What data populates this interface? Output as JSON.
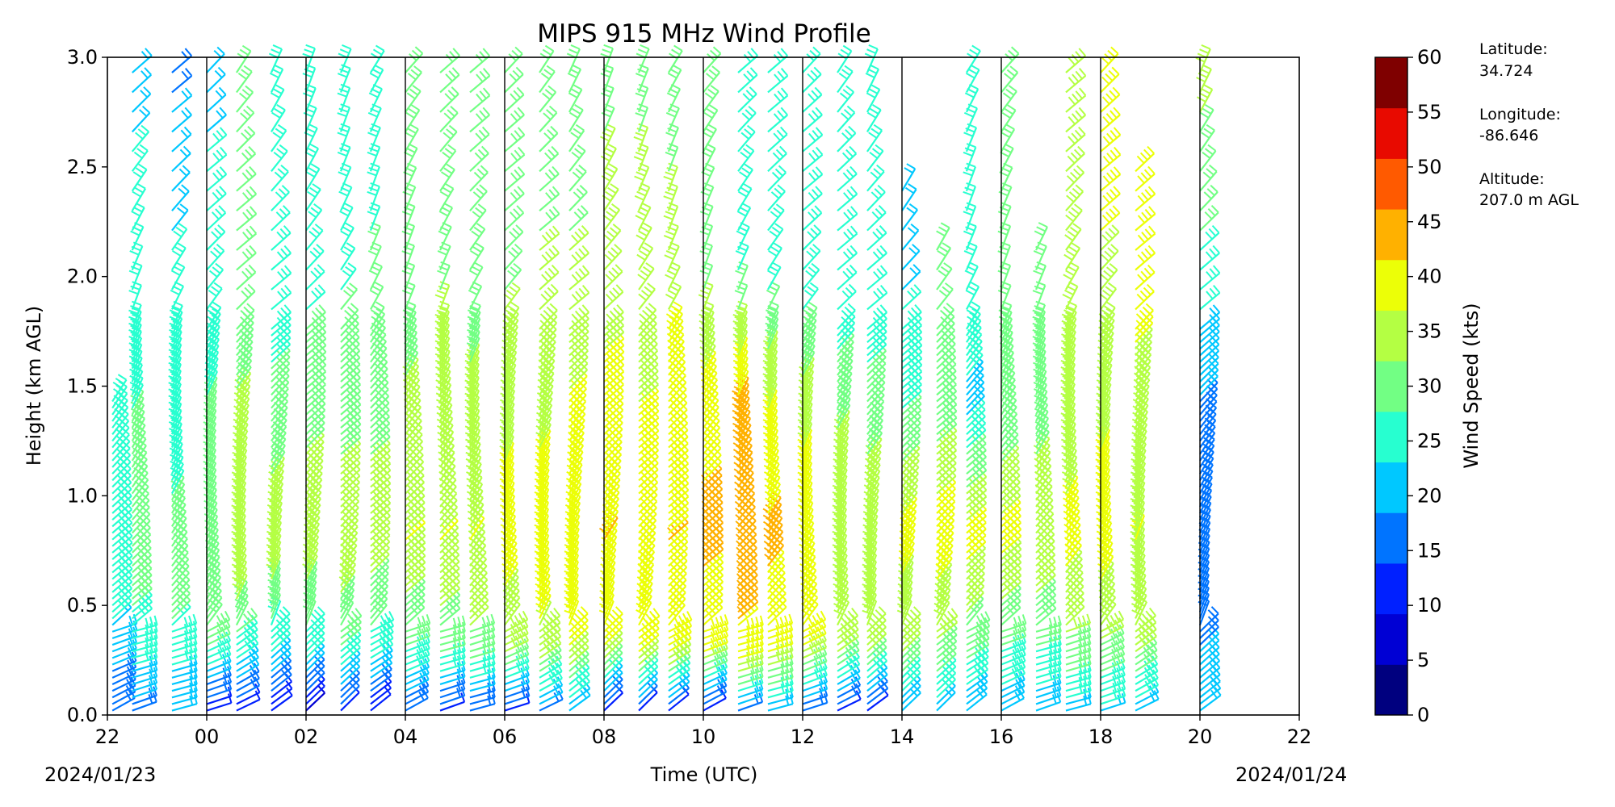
{
  "chart_data": {
    "type": "wind_barbs",
    "title": "MIPS 915 MHz Wind Profile",
    "xlabel": "Time (UTC)",
    "ylabel": "Height (km AGL)",
    "colorbar_label": "Wind Speed (kts)",
    "x_start_hour": 22,
    "x_end_hour": 46,
    "x_tick_labels": [
      "22",
      "00",
      "02",
      "04",
      "06",
      "08",
      "10",
      "12",
      "14",
      "16",
      "18",
      "20",
      "22"
    ],
    "date_start": "2024/01/23",
    "date_end": "2024/01/24",
    "ylim": [
      0.0,
      3.0
    ],
    "y_ticks": [
      "0.0",
      "0.5",
      "1.0",
      "1.5",
      "2.0",
      "2.5",
      "3.0"
    ],
    "colorbar_ticks": [
      "0",
      "5",
      "10",
      "15",
      "20",
      "25",
      "30",
      "35",
      "40",
      "45",
      "50",
      "55",
      "60"
    ],
    "colorbar_colors": [
      "#00007f",
      "#0000d4",
      "#0020ff",
      "#0074ff",
      "#00c8ff",
      "#27ffd0",
      "#72ff84",
      "#b4ff43",
      "#ecff07",
      "#ffb100",
      "#ff5a00",
      "#e80a00",
      "#7f0000"
    ],
    "speed_range": [
      0,
      60
    ],
    "vertical_separator_hours": [
      0,
      2,
      4,
      6,
      8,
      10,
      12,
      14,
      16,
      18,
      20
    ],
    "profiles": [
      {
        "hour": 22.1,
        "top": 1.45,
        "speeds": [
          [
            0,
            15
          ],
          [
            0.3,
            22
          ],
          [
            0.6,
            30
          ],
          [
            1.0,
            27
          ],
          [
            1.45,
            25
          ]
        ]
      },
      {
        "hour": 22.5,
        "top": 3.0,
        "speeds": [
          [
            0,
            18
          ],
          [
            0.3,
            28
          ],
          [
            0.8,
            33
          ],
          [
            1.6,
            29
          ],
          [
            2.2,
            26
          ],
          [
            3.0,
            24
          ]
        ]
      },
      {
        "hour": 23.3,
        "top": 3.0,
        "speeds": [
          [
            0,
            20
          ],
          [
            0.3,
            27
          ],
          [
            0.6,
            35
          ],
          [
            1.0,
            30
          ],
          [
            1.6,
            27
          ],
          [
            2.5,
            24
          ],
          [
            3.0,
            18
          ]
        ]
      },
      {
        "hour": 24.0,
        "top": 3.0,
        "speeds": [
          [
            0,
            10
          ],
          [
            0.3,
            30
          ],
          [
            0.6,
            35
          ],
          [
            1.2,
            32
          ],
          [
            1.8,
            27
          ],
          [
            3.0,
            24
          ]
        ]
      },
      {
        "hour": 24.6,
        "top": 3.0,
        "speeds": [
          [
            0,
            12
          ],
          [
            0.3,
            28
          ],
          [
            0.6,
            38
          ],
          [
            1.2,
            36
          ],
          [
            2.0,
            33
          ],
          [
            3.0,
            30
          ]
        ]
      },
      {
        "hour": 25.3,
        "top": 3.0,
        "speeds": [
          [
            0,
            10
          ],
          [
            0.3,
            26
          ],
          [
            0.7,
            38
          ],
          [
            1.2,
            34
          ],
          [
            2.0,
            26
          ],
          [
            3.0,
            30
          ]
        ]
      },
      {
        "hour": 26.0,
        "top": 3.0,
        "speeds": [
          [
            0,
            8
          ],
          [
            0.3,
            28
          ],
          [
            0.8,
            40
          ],
          [
            1.3,
            34
          ],
          [
            2.0,
            28
          ],
          [
            3.0,
            30
          ]
        ]
      },
      {
        "hour": 26.7,
        "top": 3.0,
        "speeds": [
          [
            0,
            12
          ],
          [
            0.3,
            30
          ],
          [
            0.8,
            40
          ],
          [
            1.4,
            32
          ],
          [
            2.2,
            29
          ],
          [
            3.0,
            30
          ]
        ]
      },
      {
        "hour": 27.3,
        "top": 3.0,
        "speeds": [
          [
            0,
            10
          ],
          [
            0.3,
            28
          ],
          [
            0.8,
            38
          ],
          [
            1.3,
            34
          ],
          [
            2.2,
            30
          ],
          [
            3.0,
            28
          ]
        ]
      },
      {
        "hour": 28.0,
        "top": 3.0,
        "speeds": [
          [
            0,
            15
          ],
          [
            0.3,
            30
          ],
          [
            0.8,
            40
          ],
          [
            1.3,
            36
          ],
          [
            2.2,
            32
          ],
          [
            3.0,
            30
          ]
        ]
      },
      {
        "hour": 28.7,
        "top": 3.0,
        "speeds": [
          [
            0,
            12
          ],
          [
            0.3,
            32
          ],
          [
            0.8,
            40
          ],
          [
            1.4,
            38
          ],
          [
            2.2,
            33
          ],
          [
            3.0,
            30
          ]
        ]
      },
      {
        "hour": 29.3,
        "top": 3.0,
        "speeds": [
          [
            0,
            14
          ],
          [
            0.3,
            34
          ],
          [
            0.8,
            40
          ],
          [
            1.4,
            36
          ],
          [
            2.2,
            32
          ],
          [
            3.0,
            30
          ]
        ]
      },
      {
        "hour": 30.0,
        "top": 3.0,
        "speeds": [
          [
            0,
            12
          ],
          [
            0.3,
            36
          ],
          [
            0.8,
            43
          ],
          [
            1.4,
            38
          ],
          [
            2.2,
            33
          ],
          [
            3.0,
            30
          ]
        ]
      },
      {
        "hour": 30.7,
        "top": 3.0,
        "speeds": [
          [
            0,
            18
          ],
          [
            0.3,
            38
          ],
          [
            0.7,
            44
          ],
          [
            1.2,
            40
          ],
          [
            2.0,
            36
          ],
          [
            3.0,
            30
          ]
        ]
      },
      {
        "hour": 31.3,
        "top": 3.0,
        "speeds": [
          [
            0,
            20
          ],
          [
            0.3,
            40
          ],
          [
            0.7,
            45
          ],
          [
            1.2,
            42
          ],
          [
            2.0,
            36
          ],
          [
            3.0,
            30
          ]
        ]
      },
      {
        "hour": 32.0,
        "top": 3.0,
        "speeds": [
          [
            0,
            10
          ],
          [
            0.3,
            40
          ],
          [
            0.8,
            45
          ],
          [
            1.3,
            42
          ],
          [
            2.0,
            38
          ],
          [
            3.0,
            33
          ]
        ]
      },
      {
        "hour": 32.7,
        "top": 3.0,
        "speeds": [
          [
            0,
            12
          ],
          [
            0.3,
            42
          ],
          [
            0.8,
            44
          ],
          [
            1.4,
            40
          ],
          [
            2.2,
            38
          ],
          [
            3.0,
            32
          ]
        ]
      },
      {
        "hour": 33.3,
        "top": 3.0,
        "speeds": [
          [
            0,
            12
          ],
          [
            0.3,
            42
          ],
          [
            0.8,
            45
          ],
          [
            1.4,
            44
          ],
          [
            2.2,
            36
          ],
          [
            3.0,
            32
          ]
        ]
      },
      {
        "hour": 34.0,
        "top": 3.0,
        "speeds": [
          [
            0,
            10
          ],
          [
            0.3,
            42
          ],
          [
            0.8,
            46
          ],
          [
            1.3,
            44
          ],
          [
            2.0,
            34
          ],
          [
            3.0,
            30
          ]
        ]
      },
      {
        "hour": 34.7,
        "top": 3.0,
        "speeds": [
          [
            0,
            18
          ],
          [
            0.3,
            44
          ],
          [
            0.8,
            48
          ],
          [
            1.4,
            46
          ],
          [
            2.0,
            30
          ],
          [
            3.0,
            28
          ]
        ]
      },
      {
        "hour": 35.3,
        "top": 3.0,
        "speeds": [
          [
            0,
            20
          ],
          [
            0.3,
            42
          ],
          [
            0.8,
            46
          ],
          [
            1.4,
            40
          ],
          [
            2.0,
            28
          ],
          [
            3.0,
            27
          ]
        ]
      },
      {
        "hour": 36.0,
        "top": 3.0,
        "speeds": [
          [
            0,
            14
          ],
          [
            0.3,
            40
          ],
          [
            0.8,
            44
          ],
          [
            1.4,
            38
          ],
          [
            2.0,
            26
          ],
          [
            3.0,
            28
          ]
        ]
      },
      {
        "hour": 36.7,
        "top": 3.0,
        "speeds": [
          [
            0,
            12
          ],
          [
            0.3,
            38
          ],
          [
            0.8,
            40
          ],
          [
            1.4,
            34
          ],
          [
            2.0,
            25
          ],
          [
            3.0,
            28
          ]
        ]
      },
      {
        "hour": 37.3,
        "top": 3.0,
        "speeds": [
          [
            0,
            12
          ],
          [
            0.3,
            36
          ],
          [
            0.8,
            40
          ],
          [
            1.4,
            32
          ],
          [
            2.0,
            26
          ],
          [
            3.0,
            28
          ]
        ]
      },
      {
        "hour": 38.0,
        "top": 2.4,
        "speeds": [
          [
            0,
            20
          ],
          [
            0.3,
            36
          ],
          [
            0.8,
            42
          ],
          [
            1.4,
            30
          ],
          [
            2.0,
            24
          ],
          [
            2.4,
            24
          ]
        ]
      },
      {
        "hour": 38.7,
        "top": 2.2,
        "speeds": [
          [
            0,
            22
          ],
          [
            0.3,
            34
          ],
          [
            0.8,
            44
          ],
          [
            1.4,
            32
          ],
          [
            2.2,
            32
          ]
        ]
      },
      {
        "hour": 39.3,
        "top": 3.0,
        "speeds": [
          [
            0,
            20
          ],
          [
            0.3,
            32
          ],
          [
            0.8,
            42
          ],
          [
            1.4,
            24
          ],
          [
            2.0,
            28
          ],
          [
            3.0,
            30
          ]
        ]
      },
      {
        "hour": 40.0,
        "top": 3.0,
        "speeds": [
          [
            0,
            22
          ],
          [
            0.3,
            30
          ],
          [
            0.8,
            42
          ],
          [
            1.4,
            30
          ],
          [
            2.0,
            32
          ],
          [
            3.0,
            32
          ]
        ]
      },
      {
        "hour": 40.7,
        "top": 2.2,
        "speeds": [
          [
            0,
            22
          ],
          [
            0.3,
            30
          ],
          [
            0.8,
            40
          ],
          [
            1.4,
            32
          ],
          [
            2.2,
            30
          ]
        ]
      },
      {
        "hour": 41.3,
        "top": 3.0,
        "speeds": [
          [
            0,
            22
          ],
          [
            0.3,
            34
          ],
          [
            0.8,
            42
          ],
          [
            1.4,
            36
          ],
          [
            2.2,
            36
          ],
          [
            3.0,
            38
          ]
        ]
      },
      {
        "hour": 42.0,
        "top": 3.0,
        "speeds": [
          [
            0,
            24
          ],
          [
            0.3,
            34
          ],
          [
            0.8,
            44
          ],
          [
            1.4,
            38
          ],
          [
            2.2,
            40
          ],
          [
            3.0,
            44
          ]
        ]
      },
      {
        "hour": 42.7,
        "top": 2.5,
        "speeds": [
          [
            0,
            22
          ],
          [
            0.3,
            36
          ],
          [
            0.8,
            40
          ],
          [
            1.4,
            38
          ],
          [
            2.0,
            42
          ],
          [
            2.5,
            44
          ]
        ]
      },
      {
        "hour": 44.0,
        "top": 3.0,
        "speeds": [
          [
            0,
            20
          ],
          [
            0.3,
            20
          ],
          [
            0.8,
            18
          ],
          [
            1.2,
            17
          ],
          [
            1.6,
            22
          ],
          [
            2.2,
            30
          ],
          [
            3.0,
            38
          ]
        ]
      }
    ]
  },
  "station": {
    "latitude_label": "Latitude:",
    "latitude_value": "34.724",
    "longitude_label": "Longitude:",
    "longitude_value": "-86.646",
    "altitude_label": "Altitude:",
    "altitude_value": "207.0 m AGL"
  }
}
